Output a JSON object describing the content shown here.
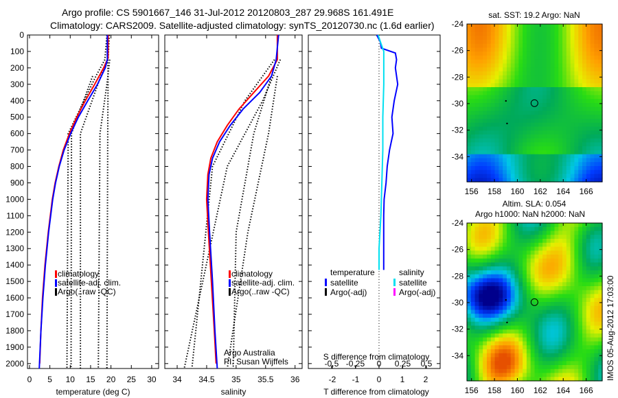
{
  "title_line1": "Argo profile: CS 5901667_146 31-Jul-2012 20120803_287 29.968S 161.491E",
  "title_line2": "Climatology: CARS2009. Satellite-adjusted climatology: synTS_20120730.nc (1.6d earlier)",
  "colors": {
    "climatology": "#ff0000",
    "satellite": "#0000ff",
    "argo": "#000000",
    "sal_satellite": "#00e0f0",
    "sal_argo": "#ff00ff"
  },
  "chart_data": [
    {
      "type": "line",
      "name": "temperature",
      "xlabel": "temperature (deg C)",
      "xlim": [
        -0.5,
        31.7
      ],
      "ylim": [
        0,
        2030
      ],
      "xticks": [
        0,
        5,
        10,
        15,
        20,
        25,
        30
      ],
      "yticks": [
        0,
        100,
        200,
        300,
        400,
        500,
        600,
        700,
        800,
        900,
        1000,
        1100,
        1200,
        1300,
        1400,
        1500,
        1600,
        1700,
        1800,
        1900,
        2000
      ],
      "legend": [
        "climatology",
        "satellite-adj. clim.",
        "Argo(..raw -QC)"
      ],
      "series": [
        {
          "name": "climatology",
          "depth": [
            0,
            140,
            200,
            300,
            400,
            500,
            600,
            700,
            800,
            900,
            1000,
            1200,
            1400,
            1600,
            1800,
            2000
          ],
          "values": [
            19.3,
            19.3,
            18.2,
            16.0,
            13.7,
            11.6,
            9.8,
            8.3,
            7.2,
            6.3,
            5.6,
            4.6,
            3.8,
            3.2,
            2.8,
            2.5
          ]
        },
        {
          "name": "satellite-adj. clim.",
          "depth": [
            0,
            150,
            200,
            300,
            400,
            500,
            600,
            700,
            800,
            900,
            1000,
            1200,
            1400,
            1600,
            1800,
            2030
          ],
          "values": [
            19.1,
            19.1,
            18.6,
            16.7,
            14.3,
            12.0,
            10.1,
            8.5,
            7.3,
            6.4,
            5.7,
            4.7,
            3.9,
            3.3,
            2.8,
            2.4
          ]
        }
      ],
      "std_lines": [
        {
          "depth": [
            0,
            150,
            250,
            600,
            2030
          ],
          "values": [
            19.6,
            19.3,
            17.5,
            12.5,
            12.5
          ]
        },
        {
          "depth": [
            0,
            150,
            250,
            600,
            2030
          ],
          "values": [
            19.0,
            18.5,
            16.3,
            9.5,
            9.2
          ]
        },
        {
          "depth": [
            150,
            300,
            600,
            2030
          ],
          "values": [
            19.7,
            19.0,
            17.3,
            16.9
          ]
        },
        {
          "depth": [
            150,
            250,
            600,
            2030
          ],
          "values": [
            19.2,
            19.3,
            19.2,
            19.0
          ]
        },
        {
          "depth": [
            250,
            600,
            2030
          ],
          "values": [
            15.5,
            10.3,
            10.2
          ]
        }
      ]
    },
    {
      "type": "line",
      "name": "salinity",
      "xlabel": "salinity",
      "xlim": [
        33.79,
        36.12
      ],
      "ylim": [
        0,
        2030
      ],
      "xticks": [
        34,
        34.5,
        35,
        35.5,
        36
      ],
      "legend": [
        "climatology",
        "satellite-adj. clim.",
        "Argo(..raw -QC)"
      ],
      "annotation": [
        "Argo Australia",
        "PI: Susan Wijffels"
      ],
      "series": [
        {
          "name": "climatology",
          "depth": [
            0,
            150,
            250,
            350,
            450,
            550,
            650,
            750,
            850,
            1000,
            1200,
            1500,
            1800,
            2000
          ],
          "values": [
            35.7,
            35.7,
            35.55,
            35.3,
            35.05,
            34.85,
            34.68,
            34.57,
            34.52,
            34.5,
            34.53,
            34.58,
            34.63,
            34.66
          ]
        },
        {
          "name": "satellite-adj. clim.",
          "depth": [
            0,
            150,
            250,
            350,
            450,
            550,
            650,
            750,
            850,
            1000,
            1200,
            1500,
            1800,
            2030
          ],
          "values": [
            35.72,
            35.68,
            35.6,
            35.4,
            35.12,
            34.9,
            34.72,
            34.6,
            34.54,
            34.52,
            34.55,
            34.6,
            34.64,
            34.68
          ]
        }
      ],
      "std_lines": [
        {
          "depth": [
            150,
            400,
            800,
            2030
          ],
          "values": [
            35.75,
            35.45,
            34.85,
            34.12
          ]
        },
        {
          "depth": [
            150,
            400,
            800,
            2030
          ],
          "values": [
            35.65,
            35.15,
            34.6,
            34.25
          ]
        },
        {
          "depth": [
            250,
            600,
            1200,
            2030
          ],
          "values": [
            35.7,
            35.55,
            35.2,
            34.85
          ]
        },
        {
          "depth": [
            250,
            600,
            1200,
            2030
          ],
          "values": [
            35.6,
            35.3,
            35.0,
            34.95
          ]
        }
      ]
    },
    {
      "type": "line",
      "name": "difference",
      "xlabel": "T difference from climatology",
      "top_label": "S difference from climatology",
      "xlim": [
        -3.03,
        2.62
      ],
      "xticks": [
        -2,
        -1,
        0,
        1,
        2
      ],
      "s_xticks": [
        "-0.5",
        "-0.25",
        "0",
        "0.25",
        "0.5"
      ],
      "s_tick_values": [
        -0.5,
        -0.25,
        0,
        0.25,
        0.5
      ],
      "legend_headers": [
        "temperature",
        "salinity"
      ],
      "legend_left": [
        "satellite",
        "Argo(-adj)"
      ],
      "legend_right": [
        "satellite",
        "Argo(-adj)"
      ],
      "series": [
        {
          "name": "T satellite",
          "depth": [
            0,
            40,
            80,
            110,
            150,
            200,
            300,
            400,
            500,
            600,
            700,
            800,
            900,
            1000,
            1100,
            1200,
            1400,
            1430
          ],
          "values": [
            -0.1,
            0.05,
            0.1,
            0.7,
            0.75,
            0.7,
            0.8,
            0.65,
            0.55,
            0.6,
            0.45,
            0.35,
            0.3,
            0.22,
            0.2,
            0.2,
            0.2,
            0.2
          ]
        },
        {
          "name": "S satellite",
          "depth": [
            0,
            50,
            100,
            200,
            300,
            500,
            700,
            900,
            1100,
            1300,
            1430
          ],
          "s_values": [
            -0.01,
            0.02,
            0.05,
            0.05,
            0.05,
            0.04,
            0.04,
            0.03,
            0.02,
            0.0,
            0.0
          ]
        }
      ]
    },
    {
      "type": "heatmap",
      "name": "sst_map",
      "title": "sat. SST: 19.2 Argo: NaN",
      "xticks": [
        156,
        158,
        160,
        162,
        164,
        166
      ],
      "yticks": [
        -24,
        -26,
        -28,
        -30,
        -32,
        -34
      ],
      "xlim": [
        155.6,
        167.4
      ],
      "ylim": [
        -35.9,
        -24
      ],
      "marker": [
        161.491,
        -29.968
      ]
    },
    {
      "type": "heatmap",
      "name": "sla_map",
      "title": [
        "Altim. SLA: 0.054",
        "Argo h1000: NaN h2000: NaN"
      ],
      "xticks": [
        156,
        158,
        160,
        162,
        164,
        166
      ],
      "yticks": [
        -24,
        -26,
        -28,
        -30,
        -32,
        -34
      ],
      "xlim": [
        155.6,
        167.4
      ],
      "ylim": [
        -35.9,
        -24
      ],
      "marker": [
        161.491,
        -29.968
      ]
    }
  ],
  "footer": "IMOS 05-Aug-2012 17:03:00"
}
